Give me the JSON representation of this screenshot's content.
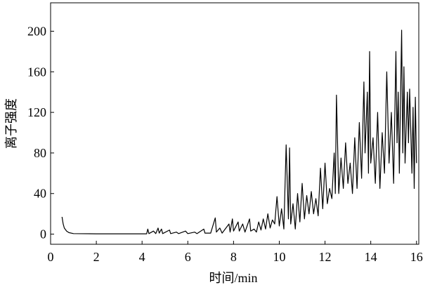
{
  "chart_data": {
    "type": "line",
    "xlabel": "时间/min",
    "ylabel": "离子强度",
    "xlim": [
      0,
      16.1
    ],
    "ylim": [
      -10,
      228
    ],
    "xticks": [
      0,
      2,
      4,
      6,
      8,
      10,
      12,
      14,
      16
    ],
    "yticks": [
      0,
      40,
      80,
      120,
      160,
      200
    ],
    "color": "#000000",
    "x": [
      0.5,
      0.55,
      0.6,
      0.7,
      0.8,
      1.0,
      2.0,
      4.2,
      4.25,
      4.3,
      4.5,
      4.6,
      4.7,
      4.75,
      4.85,
      4.9,
      5.2,
      5.25,
      5.5,
      5.6,
      5.9,
      6.0,
      6.3,
      6.4,
      6.7,
      6.75,
      7.0,
      7.2,
      7.25,
      7.4,
      7.5,
      7.8,
      7.85,
      7.95,
      8.0,
      8.2,
      8.25,
      8.4,
      8.5,
      8.7,
      8.75,
      8.9,
      9.0,
      9.1,
      9.2,
      9.3,
      9.4,
      9.5,
      9.6,
      9.7,
      9.8,
      9.9,
      10.0,
      10.1,
      10.2,
      10.3,
      10.4,
      10.45,
      10.5,
      10.6,
      10.7,
      10.8,
      10.9,
      11.0,
      11.1,
      11.2,
      11.3,
      11.4,
      11.5,
      11.6,
      11.7,
      11.8,
      11.9,
      12.0,
      12.1,
      12.2,
      12.3,
      12.4,
      12.45,
      12.5,
      12.6,
      12.7,
      12.8,
      12.9,
      13.0,
      13.1,
      13.2,
      13.3,
      13.4,
      13.5,
      13.6,
      13.7,
      13.75,
      13.85,
      13.9,
      13.95,
      14.0,
      14.1,
      14.2,
      14.3,
      14.4,
      14.5,
      14.6,
      14.7,
      14.8,
      14.9,
      15.0,
      15.1,
      15.15,
      15.2,
      15.25,
      15.35,
      15.4,
      15.45,
      15.5,
      15.6,
      15.65,
      15.7,
      15.8,
      15.85,
      15.9,
      15.95,
      16.0
    ],
    "values": [
      17,
      10,
      6,
      3,
      1.5,
      0.5,
      0.3,
      0.3,
      5,
      0.5,
      3,
      0.5,
      6,
      1,
      5,
      0.5,
      4,
      0.5,
      2,
      0.5,
      3,
      0.5,
      2,
      0.5,
      5,
      1,
      1,
      16,
      2,
      6,
      1,
      10,
      2,
      15,
      3,
      12,
      3,
      10,
      2,
      15,
      3,
      5,
      2,
      12,
      4,
      15,
      5,
      20,
      6,
      14,
      10,
      37,
      8,
      25,
      5,
      88,
      15,
      85,
      10,
      30,
      5,
      40,
      12,
      50,
      15,
      38,
      20,
      42,
      20,
      35,
      18,
      65,
      25,
      70,
      30,
      45,
      35,
      80,
      40,
      137,
      40,
      75,
      45,
      90,
      50,
      70,
      40,
      95,
      45,
      110,
      55,
      150,
      80,
      140,
      60,
      180,
      70,
      95,
      50,
      120,
      45,
      100,
      60,
      160,
      70,
      120,
      50,
      180,
      90,
      140,
      60,
      201,
      80,
      165,
      70,
      140,
      90,
      143,
      60,
      125,
      45,
      135,
      70
    ]
  }
}
